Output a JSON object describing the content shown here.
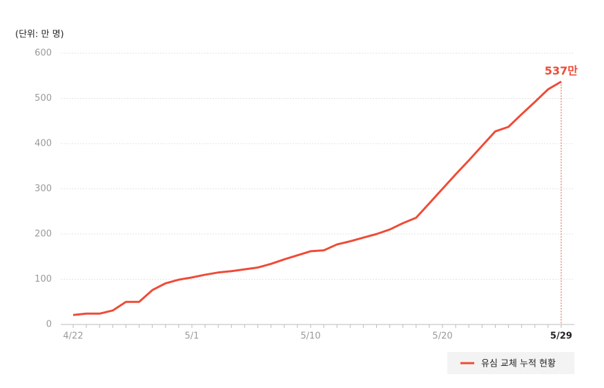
{
  "chart_data": {
    "type": "line",
    "unit_label": "(단위: 만 명)",
    "categories": [
      "4/22",
      null,
      null,
      null,
      null,
      null,
      null,
      null,
      null,
      "5/1",
      null,
      null,
      null,
      null,
      null,
      null,
      null,
      null,
      "5/10",
      null,
      null,
      null,
      null,
      null,
      null,
      null,
      null,
      null,
      "5/20",
      null,
      null,
      null,
      null,
      null,
      null,
      null,
      null,
      "5/29"
    ],
    "series": [
      {
        "name": "유심 교체 누적 현황",
        "color": "#ee4b36",
        "values": [
          21,
          24,
          24,
          31,
          50,
          50,
          76,
          91,
          99,
          104,
          110,
          115,
          118,
          122,
          126,
          134,
          144,
          153,
          162,
          164,
          177,
          184,
          192,
          200,
          210,
          224,
          236,
          268,
          300,
          332,
          363,
          395,
          427,
          437,
          465,
          492,
          520,
          537
        ],
        "value_labels": [
          null,
          null,
          null,
          null,
          null,
          null,
          null,
          null,
          null,
          null,
          null,
          null,
          null,
          null,
          null,
          null,
          null,
          null,
          null,
          null,
          null,
          null,
          null,
          null,
          null,
          null,
          null,
          null,
          null,
          null,
          null,
          null,
          null,
          null,
          null,
          null,
          null,
          "537만"
        ]
      }
    ],
    "ylim": [
      0,
      600
    ],
    "yticks": [
      0,
      100,
      200,
      300,
      400,
      500,
      600
    ],
    "grid": true,
    "legend": "bottom-right"
  }
}
